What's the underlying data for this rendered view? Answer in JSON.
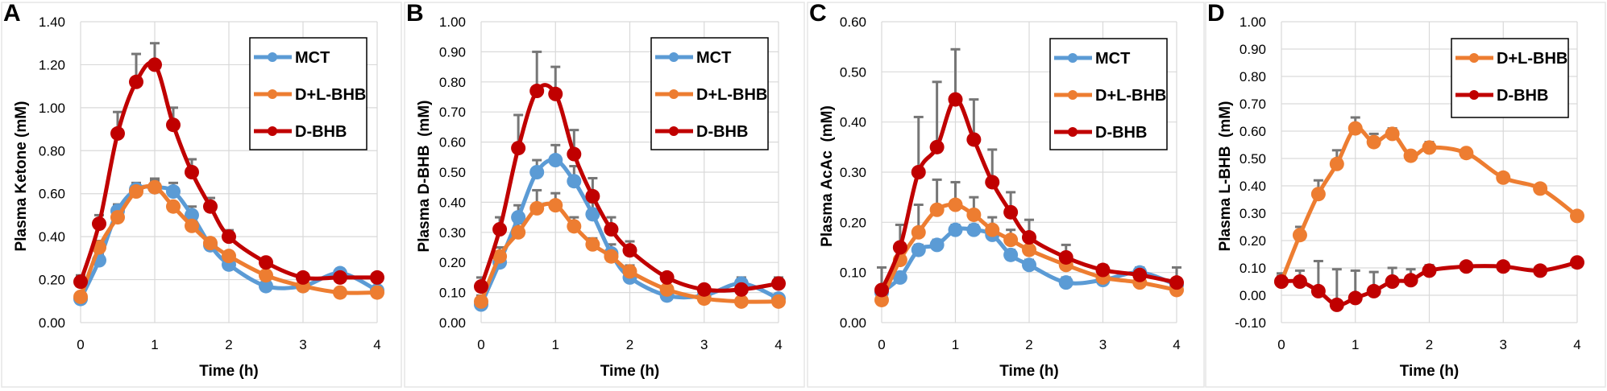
{
  "colors": {
    "MCT": "#5B9BD5",
    "D+L-BHB": "#ED7D31",
    "D-BHB": "#C00000",
    "error_bar": "#767676",
    "grid": "#D9D9D9"
  },
  "chart_data": [
    {
      "panel": "A",
      "type": "line",
      "xlabel": "Time (h)",
      "ylabel": "Plasma Ketone (mM)",
      "x": [
        0,
        0.25,
        0.5,
        0.75,
        1,
        1.25,
        1.5,
        1.75,
        2,
        2.5,
        3,
        3.5,
        4
      ],
      "xlim": [
        0,
        4
      ],
      "xticks": [
        "0",
        "1",
        "2",
        "3",
        "4"
      ],
      "ylim": [
        0,
        1.4
      ],
      "yticks": [
        "0.00",
        "0.20",
        "0.40",
        "0.60",
        "0.80",
        "1.00",
        "1.20",
        "1.40"
      ],
      "grid": true,
      "legend": "top-right",
      "series": [
        {
          "name": "MCT",
          "values": [
            0.11,
            0.29,
            0.52,
            0.62,
            0.63,
            0.61,
            0.5,
            0.36,
            0.27,
            0.17,
            0.17,
            0.23,
            0.15
          ],
          "err": [
            0.02,
            0.03,
            0.03,
            0.03,
            0.04,
            0.04,
            0.04,
            0.03,
            0.02,
            0.01,
            0.01,
            0.02,
            0.01
          ]
        },
        {
          "name": "D+L-BHB",
          "values": [
            0.12,
            0.35,
            0.49,
            0.61,
            0.63,
            0.54,
            0.45,
            0.37,
            0.31,
            0.22,
            0.17,
            0.14,
            0.14
          ],
          "err": [
            0.01,
            0.03,
            0.04,
            0.03,
            0.03,
            0.02,
            0.02,
            0.02,
            0.02,
            0.01,
            0.01,
            0.01,
            0.01
          ]
        },
        {
          "name": "D-BHB",
          "values": [
            0.19,
            0.46,
            0.88,
            1.12,
            1.2,
            0.92,
            0.7,
            0.54,
            0.4,
            0.28,
            0.21,
            0.21,
            0.21
          ],
          "err": [
            0.03,
            0.04,
            0.1,
            0.13,
            0.1,
            0.08,
            0.06,
            0.04,
            0.03,
            0.01,
            0.01,
            0.01,
            0.01
          ]
        }
      ]
    },
    {
      "panel": "B",
      "type": "line",
      "xlabel": "Time (h)",
      "ylabel": "Plasma D-BHB  (mM)",
      "x": [
        0,
        0.25,
        0.5,
        0.75,
        1,
        1.25,
        1.5,
        1.75,
        2,
        2.5,
        3,
        3.5,
        4
      ],
      "xlim": [
        0,
        4
      ],
      "xticks": [
        "0",
        "1",
        "2",
        "3",
        "4"
      ],
      "ylim": [
        0,
        1.0
      ],
      "yticks": [
        "0.00",
        "0.10",
        "0.20",
        "0.30",
        "0.40",
        "0.50",
        "0.60",
        "0.70",
        "0.80",
        "0.90",
        "1.00"
      ],
      "grid": true,
      "legend": "top-right",
      "series": [
        {
          "name": "MCT",
          "values": [
            0.06,
            0.2,
            0.35,
            0.5,
            0.54,
            0.47,
            0.36,
            0.23,
            0.15,
            0.09,
            0.09,
            0.13,
            0.08
          ],
          "err": [
            0.02,
            0.05,
            0.04,
            0.04,
            0.05,
            0.05,
            0.04,
            0.03,
            0.02,
            0.01,
            0.01,
            0.02,
            0.01
          ]
        },
        {
          "name": "D+L-BHB",
          "values": [
            0.07,
            0.22,
            0.3,
            0.38,
            0.39,
            0.32,
            0.26,
            0.22,
            0.17,
            0.11,
            0.08,
            0.07,
            0.07
          ],
          "err": [
            0.02,
            0.03,
            0.03,
            0.06,
            0.04,
            0.03,
            0.02,
            0.02,
            0.02,
            0.01,
            0.01,
            0.01,
            0.01
          ]
        },
        {
          "name": "D-BHB",
          "values": [
            0.12,
            0.31,
            0.58,
            0.77,
            0.76,
            0.56,
            0.42,
            0.31,
            0.24,
            0.15,
            0.11,
            0.11,
            0.13
          ],
          "err": [
            0.03,
            0.04,
            0.11,
            0.13,
            0.09,
            0.08,
            0.06,
            0.04,
            0.03,
            0.01,
            0.01,
            0.01,
            0.02
          ]
        }
      ]
    },
    {
      "panel": "C",
      "type": "line",
      "xlabel": "Time (h)",
      "ylabel": "Plasma AcAc  (mM)",
      "x": [
        0,
        0.25,
        0.5,
        0.75,
        1,
        1.25,
        1.5,
        1.75,
        2,
        2.5,
        3,
        3.5,
        4
      ],
      "xlim": [
        0,
        4
      ],
      "xticks": [
        "0",
        "1",
        "2",
        "3",
        "4"
      ],
      "ylim": [
        0,
        0.6
      ],
      "yticks": [
        "0.00",
        "0.10",
        "0.20",
        "0.30",
        "0.40",
        "0.50",
        "0.60"
      ],
      "grid": true,
      "legend": "top-right",
      "series": [
        {
          "name": "MCT",
          "values": [
            0.06,
            0.09,
            0.145,
            0.155,
            0.185,
            0.185,
            0.175,
            0.135,
            0.115,
            0.08,
            0.085,
            0.1,
            0.075
          ],
          "err": [
            0.01,
            0.01,
            0.01,
            0.01,
            0.01,
            0.01,
            0.01,
            0.01,
            0.01,
            0.01,
            0.01,
            0.01,
            0.01
          ]
        },
        {
          "name": "D+L-BHB",
          "values": [
            0.045,
            0.125,
            0.18,
            0.225,
            0.235,
            0.215,
            0.185,
            0.165,
            0.145,
            0.115,
            0.09,
            0.08,
            0.065
          ],
          "err": [
            0.01,
            0.02,
            0.055,
            0.06,
            0.045,
            0.035,
            0.025,
            0.02,
            0.02,
            0.01,
            0.01,
            0.01,
            0.01
          ]
        },
        {
          "name": "D-BHB",
          "values": [
            0.065,
            0.15,
            0.3,
            0.35,
            0.445,
            0.365,
            0.28,
            0.22,
            0.17,
            0.13,
            0.105,
            0.095,
            0.08
          ],
          "err": [
            0.045,
            0.045,
            0.11,
            0.13,
            0.1,
            0.08,
            0.065,
            0.04,
            0.035,
            0.025,
            0.01,
            0.01,
            0.03
          ]
        }
      ]
    },
    {
      "panel": "D",
      "type": "line",
      "xlabel": "Time (h)",
      "ylabel": "Plasma L-BHB  (mM)",
      "x": [
        0,
        0.25,
        0.5,
        0.75,
        1,
        1.25,
        1.5,
        1.75,
        2,
        2.5,
        3,
        3.5,
        4
      ],
      "xlim": [
        0,
        4
      ],
      "xticks": [
        "0",
        "1",
        "2",
        "3",
        "4"
      ],
      "ylim": [
        -0.1,
        1.0
      ],
      "yticks": [
        "-0.10",
        "0.00",
        "0.10",
        "0.20",
        "0.30",
        "0.40",
        "0.50",
        "0.60",
        "0.70",
        "0.80",
        "0.90",
        "1.00"
      ],
      "grid": true,
      "legend": "top-right",
      "series": [
        {
          "name": "D+L-BHB",
          "values": [
            0.05,
            0.22,
            0.37,
            0.48,
            0.61,
            0.56,
            0.59,
            0.51,
            0.54,
            0.52,
            0.43,
            0.39,
            0.29
          ],
          "err": [
            0.02,
            0.03,
            0.05,
            0.05,
            0.04,
            0.03,
            0.02,
            0.01,
            0.02,
            0.01,
            0,
            0,
            0
          ]
        },
        {
          "name": "D-BHB",
          "values": [
            0.05,
            0.05,
            0.015,
            -0.035,
            -0.01,
            0.015,
            0.05,
            0.055,
            0.09,
            0.105,
            0.105,
            0.09,
            0.12
          ],
          "err": [
            0.03,
            0.04,
            0.11,
            0.13,
            0.1,
            0.07,
            0.05,
            0.04,
            0.02,
            0,
            0,
            0,
            0
          ]
        }
      ]
    }
  ]
}
